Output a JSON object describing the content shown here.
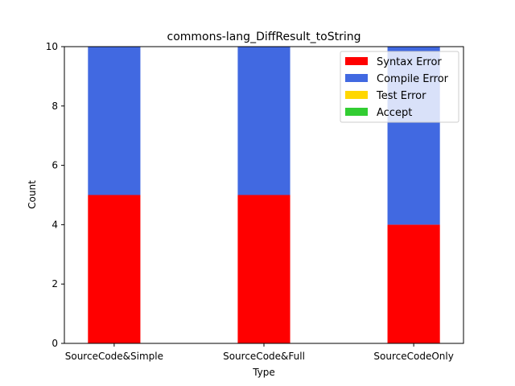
{
  "chart_data": {
    "type": "bar",
    "stacked": true,
    "title": "commons-lang_DiffResult_toString",
    "xlabel": "Type",
    "ylabel": "Count",
    "categories": [
      "SourceCode&Simple",
      "SourceCode&Full",
      "SourceCodeOnly"
    ],
    "ylim": [
      0,
      10
    ],
    "yticks": [
      0,
      2,
      4,
      6,
      8,
      10
    ],
    "grid": false,
    "legend_position": "top-right",
    "series": [
      {
        "name": "Syntax Error",
        "color": "#ff0000",
        "values": [
          5,
          5,
          4
        ]
      },
      {
        "name": "Compile Error",
        "color": "#4169e1",
        "values": [
          5,
          5,
          6
        ]
      },
      {
        "name": "Test Error",
        "color": "#ffd700",
        "values": [
          0,
          0,
          0
        ]
      },
      {
        "name": "Accept",
        "color": "#32cd32",
        "values": [
          0,
          0,
          0
        ]
      }
    ]
  }
}
